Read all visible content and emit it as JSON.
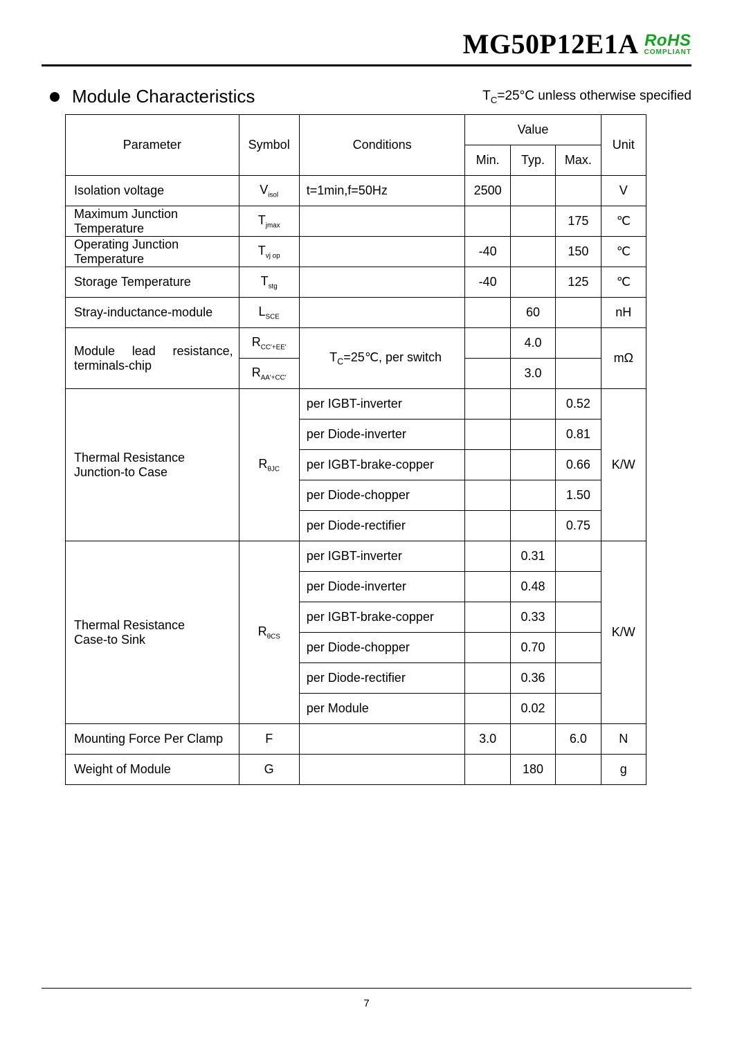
{
  "header": {
    "part_number": "MG50P12E1A",
    "rohs_top": "RoHS",
    "rohs_bottom": "COMPLIANT"
  },
  "section": {
    "title": "Module Characteristics",
    "tc_note_prefix": "T",
    "tc_note_sub": "C",
    "tc_note_rest": "=25°C unless otherwise specified"
  },
  "columns": {
    "parameter": "Parameter",
    "symbol": "Symbol",
    "conditions": "Conditions",
    "value": "Value",
    "min": "Min.",
    "typ": "Typ.",
    "max": "Max.",
    "unit": "Unit"
  },
  "rows": {
    "isolation": {
      "param": "Isolation voltage",
      "sym_main": "V",
      "sym_sub": "isol",
      "cond": "t=1min,f=50Hz",
      "min": "2500",
      "typ": "",
      "max": "",
      "unit": "V"
    },
    "tjmax": {
      "param": "Maximum Junction Temperature",
      "sym_main": "T",
      "sym_sub": "jmax",
      "cond": "",
      "min": "",
      "typ": "",
      "max": "175",
      "unit": "℃"
    },
    "tvjop": {
      "param": "Operating Junction Temperature",
      "sym_main": "T",
      "sym_sub": "vj op",
      "cond": "",
      "min": "-40",
      "typ": "",
      "max": "150",
      "unit": "℃"
    },
    "tstg": {
      "param": "Storage Temperature",
      "sym_main": "T",
      "sym_sub": "stg",
      "cond": "",
      "min": "-40",
      "typ": "",
      "max": "125",
      "unit": "℃"
    },
    "lsce": {
      "param": "Stray-inductance-module",
      "sym_main": "L",
      "sym_sub": "SCE",
      "cond": "",
      "min": "",
      "typ": "60",
      "max": "",
      "unit": "nH"
    },
    "modlead": {
      "param_w1": "Module",
      "param_w2": "lead",
      "param_w3": "resistance,",
      "param_line2": "terminals-chip",
      "sym1_main": "R",
      "sym1_sub": "CC'+EE'",
      "sym2_main": "R",
      "sym2_sub": "AA'+CC'",
      "cond_prefix": "T",
      "cond_sub": "C",
      "cond_rest": "=25℃, per switch",
      "typ1": "4.0",
      "typ2": "3.0",
      "unit": "mΩ"
    },
    "rthjc": {
      "param_l1": "Thermal Resistance",
      "param_l2": "Junction-to Case",
      "sym_main": "R",
      "sym_sub": "θJC",
      "unit": "K/W",
      "items": [
        {
          "cond": "per IGBT-inverter",
          "max": "0.52"
        },
        {
          "cond": "per Diode-inverter",
          "max": "0.81"
        },
        {
          "cond": "per IGBT-brake-copper",
          "max": "0.66"
        },
        {
          "cond": "per Diode-chopper",
          "max": "1.50"
        },
        {
          "cond": "per Diode-rectifier",
          "max": "0.75"
        }
      ]
    },
    "rthcs": {
      "param_l1": "Thermal Resistance",
      "param_l2": "Case-to Sink",
      "sym_main": "R",
      "sym_sub": "θCS",
      "unit": "K/W",
      "items": [
        {
          "cond": "per IGBT-inverter",
          "typ": "0.31"
        },
        {
          "cond": "per Diode-inverter",
          "typ": "0.48"
        },
        {
          "cond": "per IGBT-brake-copper",
          "typ": "0.33"
        },
        {
          "cond": "per Diode-chopper",
          "typ": "0.70"
        },
        {
          "cond": "per Diode-rectifier",
          "typ": "0.36"
        },
        {
          "cond": "per Module",
          "typ": "0.02"
        }
      ]
    },
    "force": {
      "param": "Mounting Force Per Clamp",
      "sym": "F",
      "cond": "",
      "min": "3.0",
      "typ": "",
      "max": "6.0",
      "unit": "N"
    },
    "weight": {
      "param": "Weight of Module",
      "sym": "G",
      "cond": "",
      "min": "",
      "typ": "180",
      "max": "",
      "unit": "g"
    }
  },
  "page_number": "7",
  "style": {
    "accent_green": "#16a321",
    "border_color": "#000000",
    "background": "#ffffff",
    "font_body": "Arial",
    "font_header": "Times New Roman"
  }
}
